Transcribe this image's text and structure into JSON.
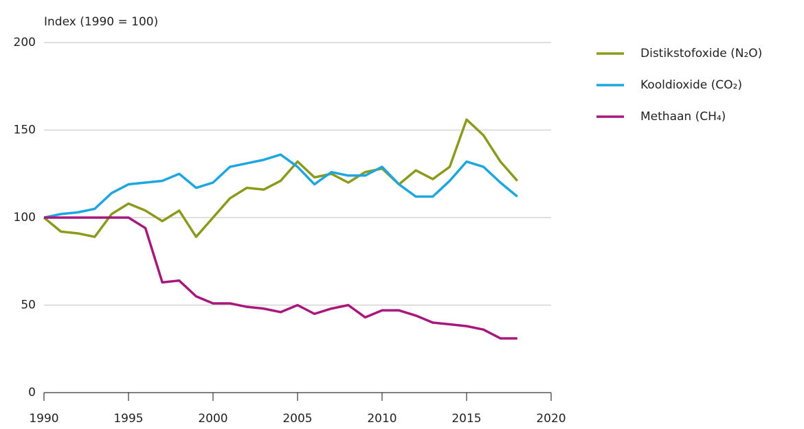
{
  "chart_data": {
    "type": "line",
    "y_label": "Index (1990 = 100)",
    "x": [
      1990,
      1991,
      1992,
      1993,
      1994,
      1995,
      1996,
      1997,
      1998,
      1999,
      2000,
      2001,
      2002,
      2003,
      2004,
      2005,
      2006,
      2007,
      2008,
      2009,
      2010,
      2011,
      2012,
      2013,
      2014,
      2015,
      2016,
      2017,
      2018
    ],
    "series": [
      {
        "name": "Distikstofoxide (N₂O)",
        "color": "#8c9a1c",
        "values": [
          100,
          92,
          91,
          89,
          102,
          108,
          104,
          98,
          104,
          89,
          100,
          111,
          117,
          116,
          121,
          132,
          123,
          125,
          120,
          126,
          128,
          119,
          127,
          122,
          129,
          156,
          147,
          132,
          121
        ]
      },
      {
        "name": "Kooldioxide (CO₂)",
        "color": "#1ea6e0",
        "values": [
          100,
          102,
          103,
          105,
          114,
          119,
          120,
          121,
          125,
          117,
          120,
          129,
          131,
          133,
          136,
          129,
          119,
          126,
          124,
          124,
          129,
          119,
          112,
          112,
          121,
          132,
          129,
          120,
          112
        ]
      },
      {
        "name": "Methaan (CH₄)",
        "color": "#a8177c",
        "values": [
          100,
          100,
          100,
          100,
          100,
          100,
          94,
          63,
          64,
          55,
          51,
          51,
          49,
          48,
          46,
          50,
          45,
          48,
          50,
          43,
          47,
          47,
          44,
          40,
          39,
          38,
          36,
          31,
          31
        ]
      }
    ],
    "xlim": [
      1990,
      2020
    ],
    "xticks": [
      1990,
      1995,
      2000,
      2005,
      2010,
      2015,
      2020
    ],
    "ylim": [
      0,
      200
    ],
    "yticks": [
      0,
      50,
      100,
      150,
      200
    ],
    "grid": true,
    "legend": "right"
  }
}
